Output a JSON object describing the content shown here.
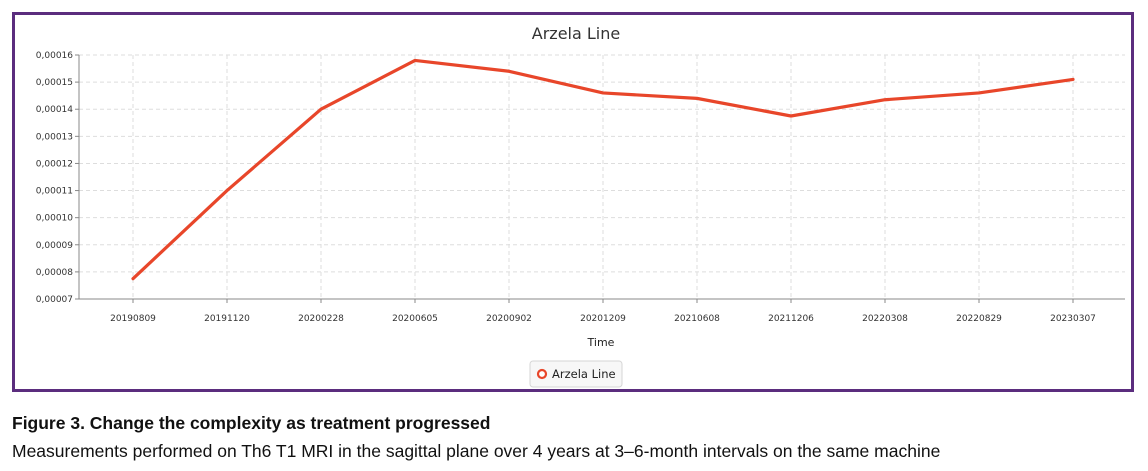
{
  "chart_data": {
    "type": "line",
    "title": "Arzela Line",
    "xlabel": "Time",
    "ylabel": "",
    "categories": [
      "20190809",
      "20191120",
      "20200228",
      "20200605",
      "20200902",
      "20201209",
      "20210608",
      "20211206",
      "20220308",
      "20220829",
      "20230307"
    ],
    "series": [
      {
        "name": "Arzela Line",
        "color": "#e8462a",
        "values": [
          7.75e-05,
          0.00011,
          0.00014,
          0.000158,
          0.000154,
          0.000146,
          0.000144,
          0.0001375,
          0.0001435,
          0.000146,
          0.000151
        ]
      }
    ],
    "ylim": [
      7e-05,
      0.00016
    ],
    "yticks": [
      7e-05,
      8e-05,
      9e-05,
      0.0001,
      0.00011,
      0.00012,
      0.00013,
      0.00014,
      0.00015,
      0.00016
    ],
    "yticklabels": [
      "0,00007",
      "0,00008",
      "0,00009",
      "0,00010",
      "0,00011",
      "0,00012",
      "0,00013",
      "0,00014",
      "0,00015",
      "0,00016"
    ],
    "grid": true,
    "legend": "bottom-center"
  },
  "caption": {
    "title": "Figure 3. Change the complexity as treatment progressed",
    "body": "Measurements performed on Th6 T1 MRI in the sagittal plane over 4 years at 3–6-month intervals on the same machine"
  },
  "colors": {
    "frame_border": "#5b2d7e",
    "grid": "#dddddd",
    "line": "#e8462a"
  }
}
